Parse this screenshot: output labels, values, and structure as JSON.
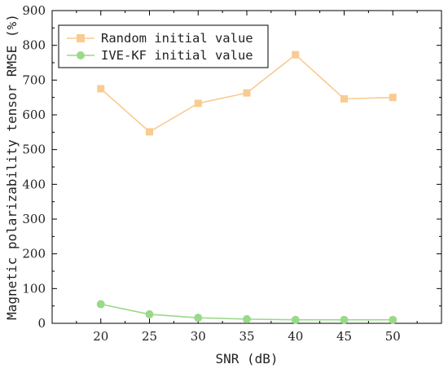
{
  "chart_data": {
    "type": "line",
    "title": "",
    "xlabel": "SNR (dB)",
    "ylabel": "Magnetic polarizability tensor RMSE (%)",
    "x": [
      20,
      25,
      30,
      35,
      40,
      45,
      50
    ],
    "xlim": [
      15,
      55
    ],
    "ylim": [
      0,
      900
    ],
    "xticks": [
      20,
      25,
      30,
      35,
      40,
      45,
      50
    ],
    "yticks": [
      0,
      100,
      200,
      300,
      400,
      500,
      600,
      700,
      800,
      900
    ],
    "grid": false,
    "legend_position": "top-left",
    "series": [
      {
        "name": "Random initial value",
        "marker": "square",
        "color": "#f9cb91",
        "values": [
          675,
          551,
          633,
          663,
          773,
          646,
          650
        ]
      },
      {
        "name": "IVE-KF initial value",
        "marker": "circle",
        "color": "#9ad98a",
        "values": [
          55,
          26,
          16,
          12,
          10,
          10,
          10
        ]
      }
    ]
  }
}
